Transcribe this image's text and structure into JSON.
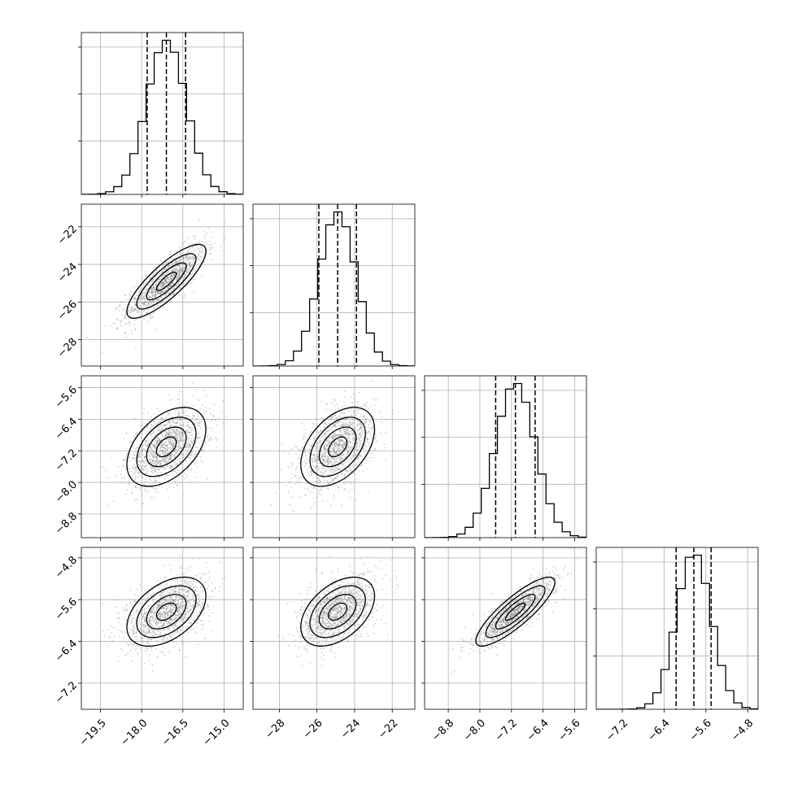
{
  "chart_data": {
    "type": "corner",
    "parameters": [
      {
        "ticks": [
          -19.5,
          -18.0,
          -16.5,
          -15.0
        ],
        "tick_labels": [
          "−19.5",
          "−18.0",
          "−16.5",
          "−15.0"
        ],
        "range": [
          -20.2,
          -14.3
        ],
        "mean": -17.1,
        "sigma": 0.72,
        "quantiles": [
          -17.8,
          -17.1,
          -16.4
        ]
      },
      {
        "ticks": [
          -28,
          -26,
          -24,
          -22
        ],
        "tick_labels": [
          "−28",
          "−26",
          "−24",
          "−22"
        ],
        "range": [
          -29.4,
          -20.8
        ],
        "mean": -24.9,
        "sigma": 0.98,
        "quantiles": [
          -25.9,
          -24.9,
          -23.9
        ]
      },
      {
        "ticks": [
          -8.8,
          -8.0,
          -7.2,
          -6.4,
          -5.6
        ],
        "tick_labels": [
          "−8.8",
          "−8.0",
          "−7.2",
          "−6.4",
          "−5.6"
        ],
        "range": [
          -9.4,
          -5.3
        ],
        "mean": -7.1,
        "sigma": 0.5,
        "quantiles": [
          -7.6,
          -7.1,
          -6.6
        ]
      },
      {
        "ticks": [
          -7.2,
          -6.4,
          -5.6,
          -4.8
        ],
        "tick_labels": [
          "−7.2",
          "−6.4",
          "−5.6",
          "−4.8"
        ],
        "range": [
          -7.7,
          -4.6
        ],
        "mean": -5.83,
        "sigma": 0.33,
        "quantiles": [
          -6.17,
          -5.83,
          -5.5
        ]
      }
    ],
    "pair_correlations": {
      "1-0": 0.82,
      "2-0": 0.45,
      "2-1": 0.45,
      "3-0": 0.45,
      "3-1": 0.45,
      "3-2": 0.85
    },
    "histogram_bins": 20,
    "contour_levels_sigma": [
      0.5,
      1.0,
      1.5,
      2.0
    ],
    "grid": true,
    "colors": {
      "ink": "#000000",
      "grid": "#b0b0b0",
      "scatter": "#7f7f7f"
    }
  }
}
